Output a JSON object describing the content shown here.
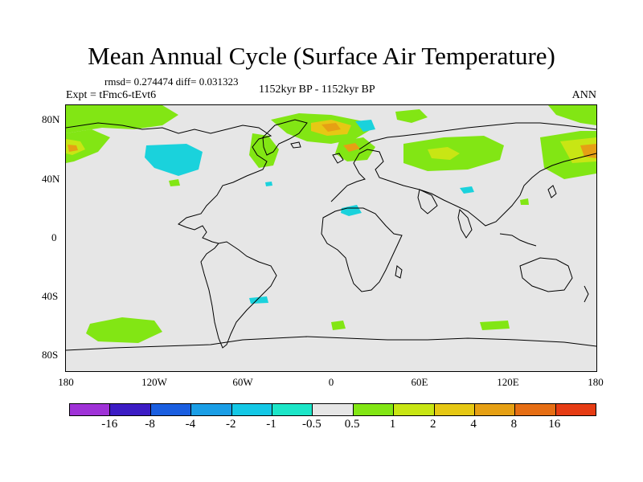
{
  "title": "Mean Annual Cycle (Surface Air Temperature)",
  "stats": "rmsd= 0.274474 diff= 0.031323",
  "experiment": "Expt = tFmc6-tEvt6",
  "period": "1152kyr BP - 1152kyr BP",
  "season": "ANN",
  "lat_labels": [
    "80N",
    "40N",
    "0",
    "40S",
    "80S"
  ],
  "lon_labels": [
    "180",
    "120W",
    "60W",
    "0",
    "60E",
    "120E",
    "180"
  ],
  "colorbar": {
    "colors": [
      "#9f32d7",
      "#3c1cc4",
      "#1a5ee0",
      "#1a9ee6",
      "#14c8e6",
      "#1ce6c8",
      "#e6e6e6",
      "#82e614",
      "#c8e614",
      "#e6c814",
      "#e6a014",
      "#e66e14",
      "#e63c14"
    ],
    "labels": [
      "-16",
      "-8",
      "-4",
      "-2",
      "-1",
      "-0.5",
      "0.5",
      "1",
      "2",
      "4",
      "8",
      "16"
    ]
  },
  "map_colors": {
    "land_line": "#000000",
    "background": "#e6e6e6",
    "green": "#82e614",
    "yellow": "#c8e614",
    "orange": "#e6a014",
    "gold": "#e6c814",
    "cyan": "#1ad2dc"
  }
}
